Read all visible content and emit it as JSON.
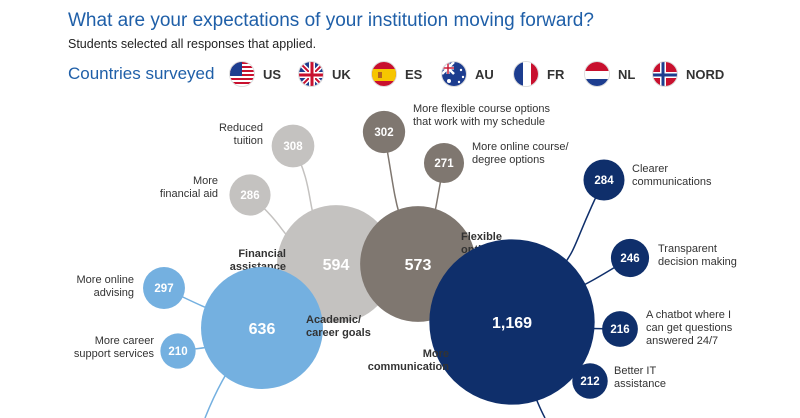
{
  "header": {
    "title": "What are your expectations of your institution moving forward?",
    "subtitle": "Students selected all responses that applied.",
    "countries_label": "Countries surveyed"
  },
  "countries": [
    {
      "code": "US",
      "flag": "us-flag-icon"
    },
    {
      "code": "UK",
      "flag": "uk-flag-icon"
    },
    {
      "code": "ES",
      "flag": "es-flag-icon"
    },
    {
      "code": "AU",
      "flag": "au-flag-icon"
    },
    {
      "code": "FR",
      "flag": "fr-flag-icon"
    },
    {
      "code": "NL",
      "flag": "nl-flag-icon"
    },
    {
      "code": "NORD",
      "flag": "nord-flag-icon"
    }
  ],
  "colors": {
    "financial": "#c4c2c0",
    "flexible": "#7f7770",
    "academic": "#74b0e0",
    "communication": "#0f2f6b",
    "title": "#1f5fa8"
  },
  "chart_data": {
    "type": "bubble-tree",
    "groups": [
      {
        "name": "Financial assistance",
        "label_lines": [
          "Financial",
          "assistance"
        ],
        "value": 594,
        "value_label": "594",
        "color": "#c4c2c0",
        "children": [
          {
            "label_lines": [
              "Reduced",
              "tuition"
            ],
            "value": 308,
            "value_label": "308"
          },
          {
            "label_lines": [
              "More",
              "financial aid"
            ],
            "value": 286,
            "value_label": "286"
          }
        ]
      },
      {
        "name": "Flexible options",
        "label_lines": [
          "Flexible",
          "options"
        ],
        "value": 573,
        "value_label": "573",
        "color": "#7f7770",
        "children": [
          {
            "label_lines": [
              "More flexible course options",
              "that work with my schedule"
            ],
            "value": 302,
            "value_label": "302"
          },
          {
            "label_lines": [
              "More online course/",
              "degree options"
            ],
            "value": 271,
            "value_label": "271"
          }
        ]
      },
      {
        "name": "Academic/career goals",
        "label_lines": [
          "Academic/",
          "career goals"
        ],
        "value": 636,
        "value_label": "636",
        "color": "#74b0e0",
        "children": [
          {
            "label_lines": [
              "More online",
              "advising"
            ],
            "value": 297,
            "value_label": "297"
          },
          {
            "label_lines": [
              "More career",
              "support services"
            ],
            "value": 210,
            "value_label": "210"
          }
        ]
      },
      {
        "name": "More communication",
        "label_lines": [
          "More",
          "communication"
        ],
        "value": 1169,
        "value_label": "1,169",
        "color": "#0f2f6b",
        "children": [
          {
            "label_lines": [
              "Clearer",
              "communications"
            ],
            "value": 284,
            "value_label": "284"
          },
          {
            "label_lines": [
              "Transparent",
              "decision making"
            ],
            "value": 246,
            "value_label": "246"
          },
          {
            "label_lines": [
              "A chatbot where I",
              "can get questions",
              "answered 24/7"
            ],
            "value": 216,
            "value_label": "216"
          },
          {
            "label_lines": [
              "Better IT",
              "assistance"
            ],
            "value": 212,
            "value_label": "212"
          }
        ]
      }
    ]
  }
}
